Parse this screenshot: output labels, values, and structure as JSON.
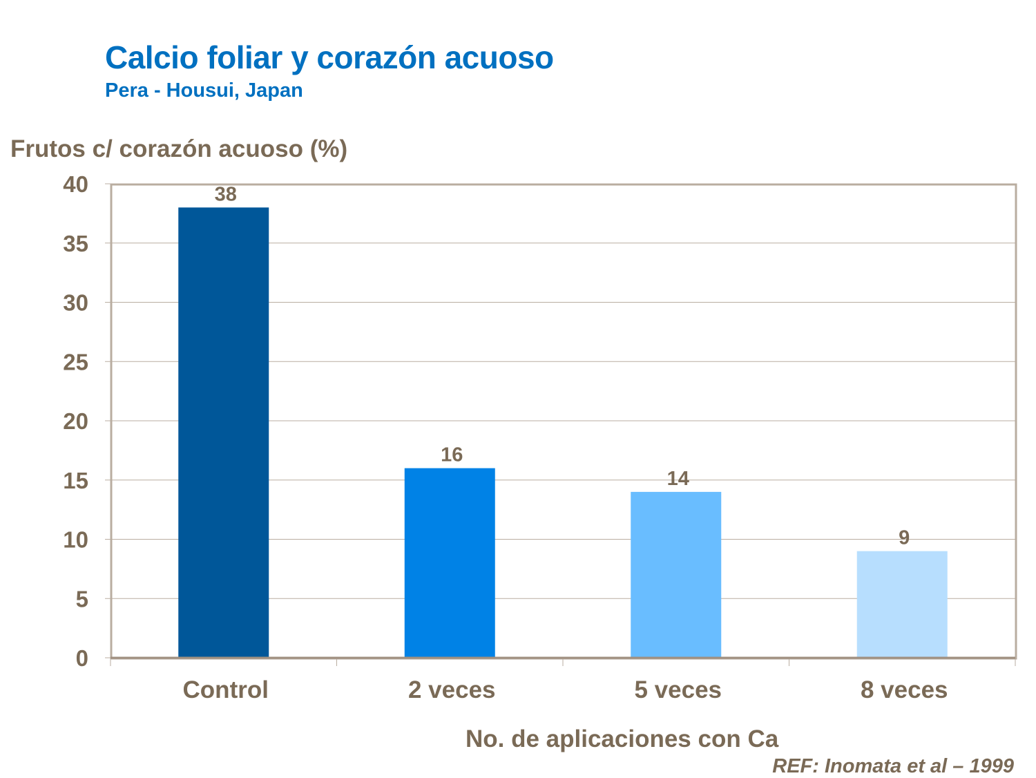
{
  "chart_data": {
    "type": "bar",
    "title": "Calcio foliar y corazón acuoso",
    "subtitle": "Pera - Housui, Japan",
    "ylabel": "Frutos c/ corazón acuoso (%)",
    "xlabel": "No. de aplicaciones con Ca",
    "categories": [
      "Control",
      "2 veces",
      "5 veces",
      "8 veces"
    ],
    "values": [
      38,
      16,
      14,
      9
    ],
    "data_labels": [
      "38",
      "16",
      "14",
      "9"
    ],
    "bar_colors": [
      "#005799",
      "#0082e6",
      "#69bdff",
      "#b7defe"
    ],
    "ylim": [
      0,
      40
    ],
    "yticks": [
      0,
      5,
      10,
      15,
      20,
      25,
      30,
      35,
      40
    ],
    "grid": true,
    "legend": "none"
  },
  "reference": "REF: Inomata et al – 1999"
}
